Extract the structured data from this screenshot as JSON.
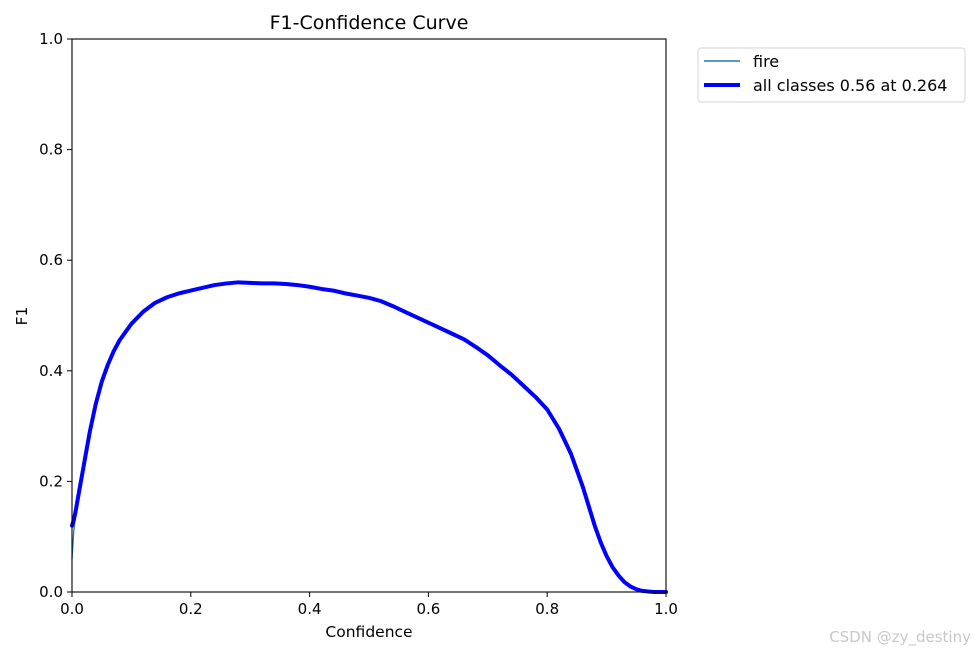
{
  "chart_data": {
    "type": "line",
    "title": "F1-Confidence Curve",
    "xlabel": "Confidence",
    "ylabel": "F1",
    "xlim": [
      0,
      1
    ],
    "ylim": [
      0,
      1
    ],
    "xticks": [
      "0.0",
      "0.2",
      "0.4",
      "0.6",
      "0.8",
      "1.0"
    ],
    "yticks": [
      "0.0",
      "0.2",
      "0.4",
      "0.6",
      "0.8",
      "1.0"
    ],
    "grid": false,
    "legend_placement": "outside-top-right",
    "series": [
      {
        "name": "fire",
        "color": "#1f77b4",
        "x": [
          0,
          0.003,
          0.006,
          0.01,
          0.015,
          0.02,
          0.03,
          0.04,
          0.05,
          0.06,
          0.07,
          0.08,
          0.09,
          0.1,
          0.12,
          0.14,
          0.16,
          0.18,
          0.2,
          0.22,
          0.24,
          0.26,
          0.28,
          0.3,
          0.32,
          0.34,
          0.36,
          0.38,
          0.4,
          0.42,
          0.44,
          0.46,
          0.48,
          0.5,
          0.52,
          0.54,
          0.56,
          0.58,
          0.6,
          0.62,
          0.64,
          0.66,
          0.68,
          0.7,
          0.72,
          0.74,
          0.76,
          0.78,
          0.8,
          0.82,
          0.84,
          0.86,
          0.87,
          0.88,
          0.89,
          0.9,
          0.91,
          0.92,
          0.93,
          0.94,
          0.95,
          0.96,
          0.97,
          0.98,
          0.99,
          1.0
        ],
        "y": [
          0.06,
          0.11,
          0.14,
          0.17,
          0.2,
          0.23,
          0.29,
          0.34,
          0.38,
          0.41,
          0.435,
          0.455,
          0.47,
          0.485,
          0.507,
          0.523,
          0.533,
          0.54,
          0.545,
          0.55,
          0.555,
          0.558,
          0.56,
          0.559,
          0.558,
          0.558,
          0.557,
          0.555,
          0.552,
          0.548,
          0.545,
          0.54,
          0.536,
          0.532,
          0.526,
          0.517,
          0.507,
          0.497,
          0.487,
          0.477,
          0.467,
          0.457,
          0.443,
          0.428,
          0.41,
          0.393,
          0.373,
          0.353,
          0.33,
          0.295,
          0.25,
          0.19,
          0.155,
          0.12,
          0.09,
          0.065,
          0.045,
          0.03,
          0.018,
          0.01,
          0.005,
          0.002,
          0.001,
          0.0,
          0.0,
          0.0
        ]
      },
      {
        "name": "all classes 0.56 at 0.264",
        "color": "#0000ff",
        "x": [
          0,
          0.003,
          0.006,
          0.01,
          0.015,
          0.02,
          0.03,
          0.04,
          0.05,
          0.06,
          0.07,
          0.08,
          0.09,
          0.1,
          0.12,
          0.14,
          0.16,
          0.18,
          0.2,
          0.22,
          0.24,
          0.26,
          0.28,
          0.3,
          0.32,
          0.34,
          0.36,
          0.38,
          0.4,
          0.42,
          0.44,
          0.46,
          0.48,
          0.5,
          0.52,
          0.54,
          0.56,
          0.58,
          0.6,
          0.62,
          0.64,
          0.66,
          0.68,
          0.7,
          0.72,
          0.74,
          0.76,
          0.78,
          0.8,
          0.82,
          0.84,
          0.86,
          0.87,
          0.88,
          0.89,
          0.9,
          0.91,
          0.92,
          0.93,
          0.94,
          0.95,
          0.96,
          0.97,
          0.98,
          0.99,
          1.0
        ],
        "y": [
          0.12,
          0.13,
          0.145,
          0.17,
          0.2,
          0.23,
          0.29,
          0.34,
          0.38,
          0.41,
          0.435,
          0.455,
          0.47,
          0.485,
          0.507,
          0.523,
          0.533,
          0.54,
          0.545,
          0.55,
          0.555,
          0.558,
          0.56,
          0.559,
          0.558,
          0.558,
          0.557,
          0.555,
          0.552,
          0.548,
          0.545,
          0.54,
          0.536,
          0.532,
          0.526,
          0.517,
          0.507,
          0.497,
          0.487,
          0.477,
          0.467,
          0.457,
          0.443,
          0.428,
          0.41,
          0.393,
          0.373,
          0.353,
          0.33,
          0.295,
          0.25,
          0.19,
          0.155,
          0.12,
          0.09,
          0.065,
          0.045,
          0.03,
          0.018,
          0.01,
          0.005,
          0.002,
          0.001,
          0.0,
          0.0,
          0.0
        ]
      }
    ]
  },
  "watermark": "CSDN @zy_destiny"
}
